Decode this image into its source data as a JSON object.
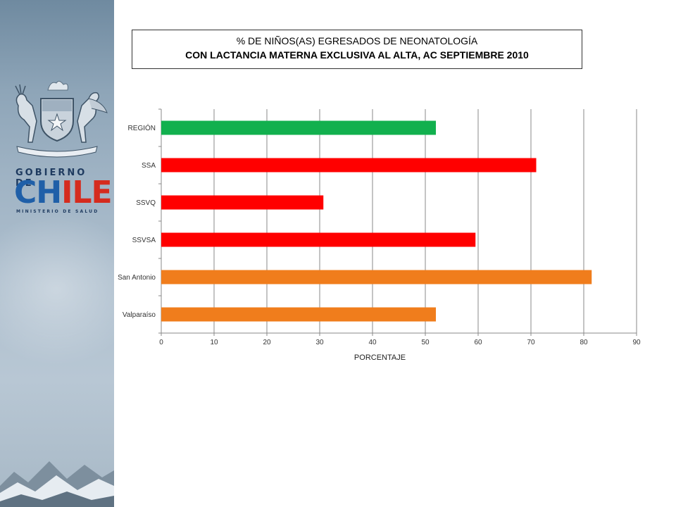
{
  "title": {
    "line1": "% DE NIÑOS(AS) EGRESADOS DE NEONATOLOGÍA",
    "line2": "CON LACTANCIA  MATERNA EXCLUSIVA AL ALTA, AC SEPTIEMBRE 2010"
  },
  "branding": {
    "gobierno": "GOBIERNO DE",
    "chile_part1": "CH",
    "chile_part2": "ILE",
    "ministerio": "MINISTERIO DE SALUD",
    "icon": "chile-coat-of-arms-icon"
  },
  "chart_data": {
    "type": "bar",
    "orientation": "horizontal",
    "categories": [
      "REGIÓN",
      "SSA",
      "SSVQ",
      "SSVSA",
      "San Antonio",
      "Valparaíso"
    ],
    "values": [
      52,
      71,
      30.7,
      59.5,
      81.5,
      52
    ],
    "colors": [
      "#12b04e",
      "#ff0000",
      "#ff0000",
      "#ff0000",
      "#f07d1c",
      "#f07d1c"
    ],
    "xlabel": "PORCENTAJE",
    "ylabel": "",
    "xlim": [
      0,
      90
    ],
    "xticks": [
      0,
      10,
      20,
      30,
      40,
      50,
      60,
      70,
      80,
      90
    ],
    "grid": true
  }
}
